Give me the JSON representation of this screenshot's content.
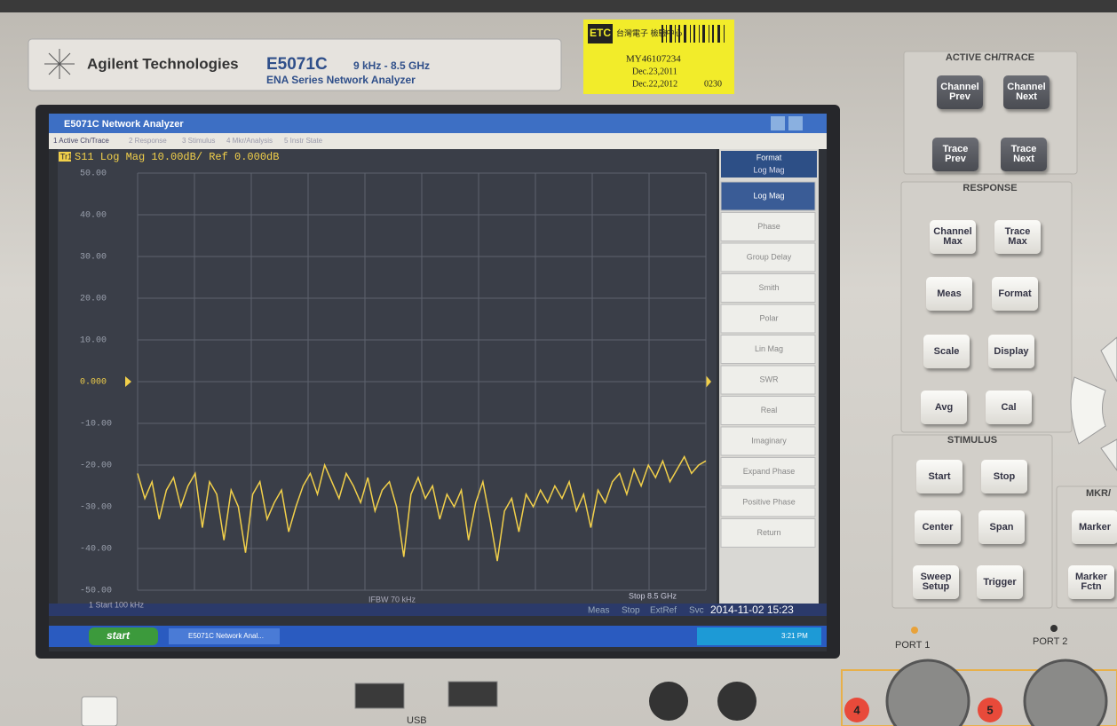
{
  "brand": {
    "company": "Agilent Technologies",
    "model": "E5071C",
    "range": "9 kHz - 8.5 GHz",
    "series": "ENA Series Network Analyzer"
  },
  "sticker": {
    "logo": "ETC",
    "org": "台灣電子 檢驗中心",
    "serial": "MY46107234",
    "cal_date": "Dec.23,2011",
    "due_date": "Dec.22,2012",
    "code": "0230"
  },
  "window": {
    "title": "E5071C Network Analyzer",
    "menu": [
      "1 Active Ch/Trace",
      "2 Response",
      "3 Stimulus",
      "4 Mkr/Analysis",
      "5 Instr State"
    ]
  },
  "trace": {
    "tag": "Tr1",
    "header": "S11 Log Mag 10.00dB/ Ref 0.000dB",
    "color": "#f2d04a",
    "ylim": [
      -50,
      50
    ],
    "yticks": [
      {
        "value": 50,
        "label": "50.00"
      },
      {
        "value": 40,
        "label": "40.00"
      },
      {
        "value": 30,
        "label": "30.00"
      },
      {
        "value": 20,
        "label": "20.00"
      },
      {
        "value": 10,
        "label": "10.00"
      },
      {
        "value": 0,
        "label": "0.000"
      },
      {
        "value": -10,
        "label": "-10.00"
      },
      {
        "value": -20,
        "label": "-20.00"
      },
      {
        "value": -30,
        "label": "-30.00"
      },
      {
        "value": -40,
        "label": "-40.00"
      },
      {
        "value": -50,
        "label": "-50.00"
      }
    ],
    "values": [
      -22,
      -28,
      -24,
      -33,
      -26,
      -23,
      -30,
      -25,
      -22,
      -35,
      -24,
      -27,
      -38,
      -26,
      -30,
      -41,
      -27,
      -24,
      -33,
      -29,
      -26,
      -36,
      -30,
      -25,
      -22,
      -27,
      -20,
      -24,
      -28,
      -22,
      -25,
      -29,
      -23,
      -31,
      -26,
      -24,
      -30,
      -42,
      -27,
      -23,
      -28,
      -25,
      -33,
      -27,
      -30,
      -26,
      -38,
      -29,
      -24,
      -33,
      -43,
      -31,
      -28,
      -36,
      -27,
      -30,
      -26,
      -29,
      -25,
      -28,
      -24,
      -31,
      -27,
      -35,
      -26,
      -29,
      -24,
      -22,
      -27,
      -21,
      -25,
      -20,
      -23,
      -19,
      -24,
      -21,
      -18,
      -22,
      -20,
      -19
    ],
    "start": "1 Start 100 kHz",
    "ifbw": "IFBW 70 kHz",
    "stop": "Stop 8.5 GHz"
  },
  "softkeys": {
    "title": "Format",
    "current": "Log Mag",
    "items": [
      "Log Mag",
      "Phase",
      "Group Delay",
      "Smith",
      "Polar",
      "Lin Mag",
      "SWR",
      "Real",
      "Imaginary",
      "Expand Phase",
      "Positive Phase",
      "Return"
    ]
  },
  "status": [
    "Meas",
    "Stop",
    "ExtRef",
    "Svc",
    "2014-11-02 15:23"
  ],
  "taskbar": {
    "start": "start",
    "task": "E5071C Network Anal...",
    "clock": "3:21 PM"
  },
  "panel": {
    "groups": [
      {
        "title": "ACTIVE CH/TRACE",
        "buttons": [
          "Channel Prev",
          "Channel Next",
          "Trace Prev",
          "Trace Next"
        ]
      },
      {
        "title": "RESPONSE",
        "buttons": [
          "Channel Max",
          "Trace Max",
          "Meas",
          "Format",
          "Scale",
          "Display",
          "Avg",
          "Cal"
        ]
      },
      {
        "title": "STIMULUS",
        "buttons": [
          "Start",
          "Stop",
          "Center",
          "Span",
          "Sweep Setup",
          "Trigger"
        ]
      },
      {
        "title": "MKR/",
        "buttons": [
          "Marker",
          "Marker Fctn"
        ]
      }
    ]
  },
  "ports": [
    "PORT 1",
    "PORT 2"
  ],
  "port_badges": [
    "4",
    "5"
  ],
  "usb": "USB"
}
